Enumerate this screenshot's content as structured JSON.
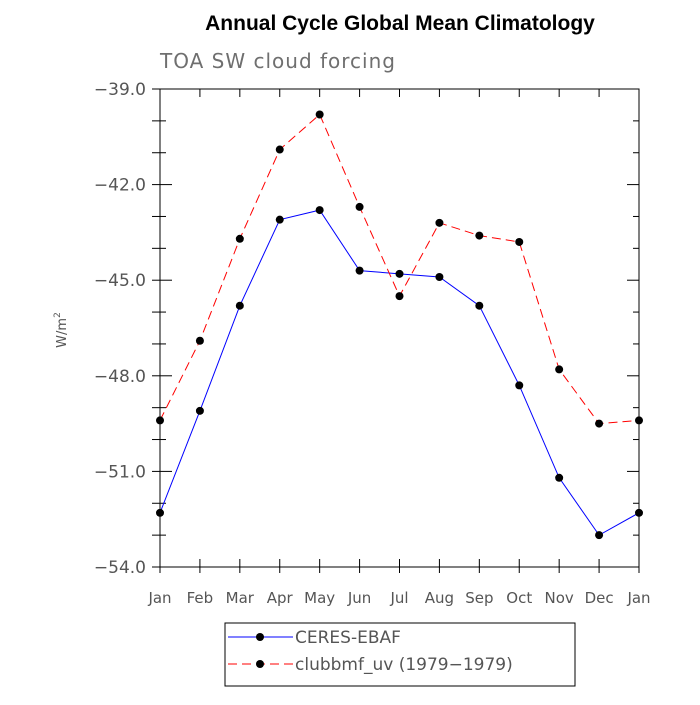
{
  "chart_data": {
    "type": "line",
    "title": "Annual Cycle Global Mean Climatology",
    "subtitle": "TOA SW cloud forcing",
    "xlabel": "",
    "ylabel": "W/m",
    "ylabel_superscript": "2",
    "ylim": [
      -54.0,
      -39.0
    ],
    "yticks": [
      "-39.0",
      "-42.0",
      "-45.0",
      "-48.0",
      "-51.0",
      "-54.0"
    ],
    "ytick_values": [
      -39.0,
      -42.0,
      -45.0,
      -48.0,
      -51.0,
      -54.0
    ],
    "categories": [
      "Jan",
      "Feb",
      "Mar",
      "Apr",
      "May",
      "Jun",
      "Jul",
      "Aug",
      "Sep",
      "Oct",
      "Nov",
      "Dec",
      "Jan"
    ],
    "grid": false,
    "legend_position": "bottom",
    "series": [
      {
        "name": "CERES-EBAF",
        "color": "#0000ff",
        "dashed": false,
        "values": [
          -52.3,
          -49.1,
          -45.8,
          -43.1,
          -42.8,
          -44.7,
          -44.8,
          -44.9,
          -45.8,
          -48.3,
          -51.2,
          -53.0,
          -52.3
        ]
      },
      {
        "name": "clubbmf_uv (1979-1979)",
        "color": "#ff0000",
        "dashed": true,
        "values": [
          -49.4,
          -46.9,
          -43.7,
          -40.9,
          -39.8,
          -42.7,
          -45.5,
          -43.2,
          -43.6,
          -43.8,
          -47.8,
          -49.5,
          -49.4
        ]
      }
    ]
  }
}
